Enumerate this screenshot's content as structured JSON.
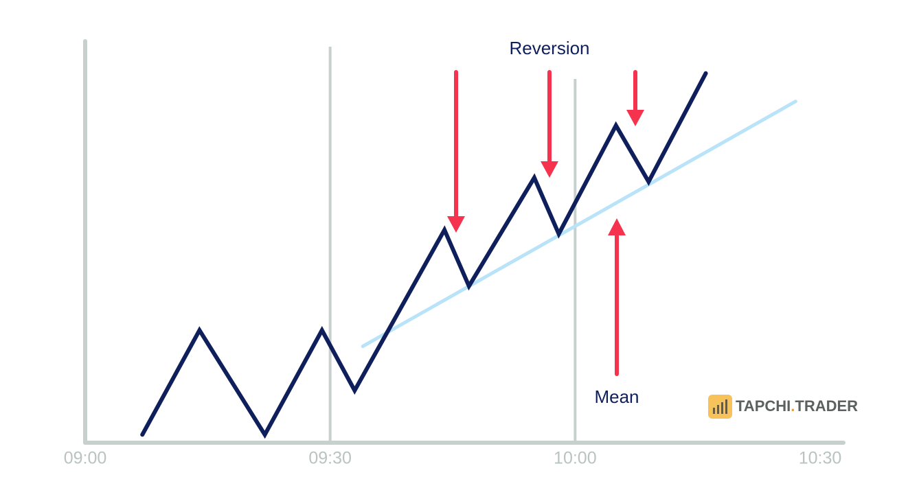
{
  "chart_data": {
    "type": "line",
    "xlim": [
      "09:00",
      "10:30"
    ],
    "xticks": [
      "09:00",
      "09:30",
      "10:00",
      "10:30"
    ],
    "ylim": [
      0,
      100
    ],
    "grid": true,
    "series": [
      {
        "color": "#0f1f5c",
        "x": [
          "09:07",
          "09:14",
          "09:22",
          "09:29",
          "09:33",
          "09:44",
          "09:47",
          "09:55",
          "09:58",
          "10:05",
          "10:09",
          "10:16"
        ],
        "values": [
          2,
          28,
          2,
          28,
          13,
          53,
          39,
          66,
          52,
          79,
          65,
          92
        ]
      },
      {
        "color": "#b8e3f8",
        "x": [
          "09:34",
          "10:27"
        ],
        "values": [
          24,
          85
        ]
      }
    ],
    "annotations": [
      "Reversion",
      "Mean"
    ],
    "watermark": [
      "TAPCHI",
      ".",
      "TRADER"
    ]
  }
}
